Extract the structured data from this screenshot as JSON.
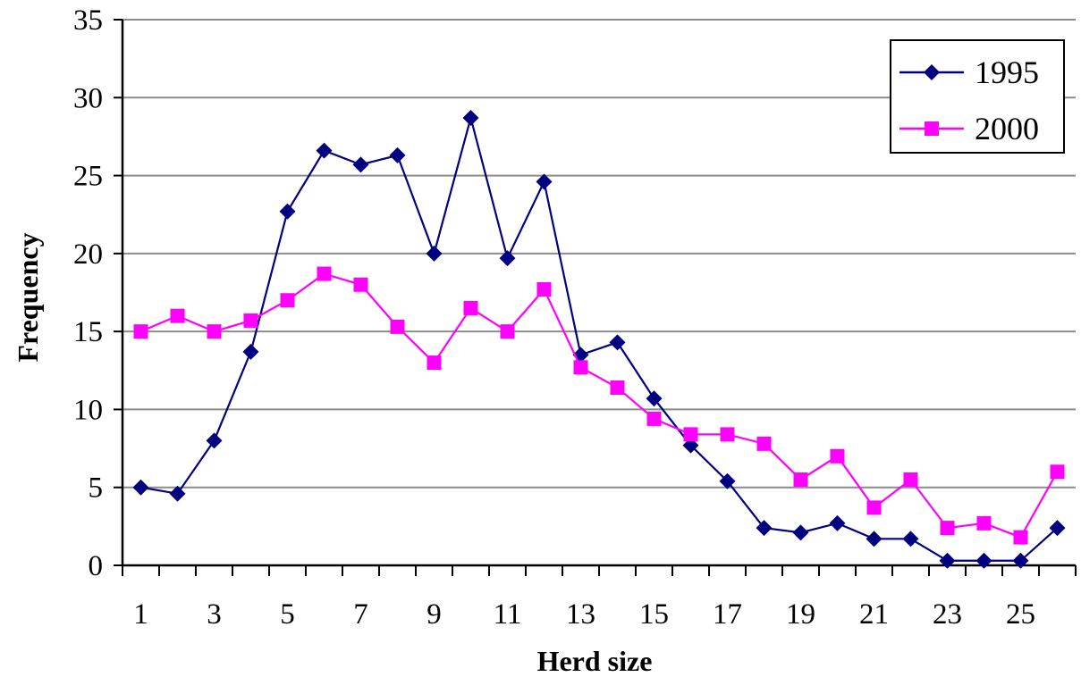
{
  "chart_data": {
    "type": "line",
    "xlabel": "Herd size",
    "ylabel": "Frequency",
    "x": [
      1,
      2,
      3,
      4,
      5,
      6,
      7,
      8,
      9,
      10,
      11,
      12,
      13,
      14,
      15,
      16,
      17,
      18,
      19,
      20,
      21,
      22,
      23,
      24,
      25,
      26
    ],
    "x_tick_labels": [
      "1",
      "3",
      "5",
      "7",
      "9",
      "11",
      "13",
      "15",
      "17",
      "19",
      "21",
      "23",
      "25"
    ],
    "y_ticks": [
      0,
      5,
      10,
      15,
      20,
      25,
      30,
      35
    ],
    "ylim": [
      0,
      35
    ],
    "grid": "horizontal",
    "legend_position": "top-right",
    "series": [
      {
        "name": "1995",
        "color": "#000080",
        "marker": "diamond",
        "values": [
          5.0,
          4.6,
          8.0,
          13.7,
          22.7,
          26.6,
          25.7,
          26.3,
          20.0,
          28.7,
          19.7,
          24.6,
          13.5,
          14.3,
          10.7,
          7.7,
          5.4,
          2.4,
          2.1,
          2.7,
          1.7,
          1.7,
          0.3,
          0.3,
          0.3,
          2.4
        ]
      },
      {
        "name": "2000",
        "color": "#ff00ff",
        "marker": "square",
        "values": [
          15.0,
          16.0,
          15.0,
          15.7,
          17.0,
          18.7,
          18.0,
          15.3,
          13.0,
          16.5,
          15.0,
          17.7,
          12.7,
          11.4,
          9.4,
          8.4,
          8.4,
          7.8,
          5.5,
          7.0,
          3.7,
          5.5,
          2.4,
          2.7,
          1.8,
          6.0
        ]
      }
    ]
  }
}
